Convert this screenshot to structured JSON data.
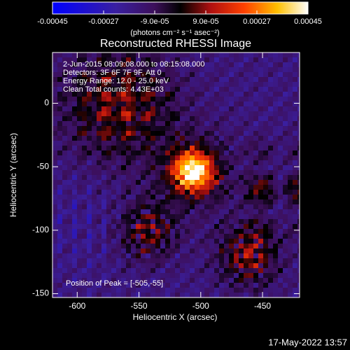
{
  "chart_data": {
    "type": "image",
    "title": "Reconstructed RHESSI Image",
    "x_label": "Heliocentric X (arcsec)",
    "y_label": "Heliocentric Y (arcsec)",
    "xlim": [
      -620,
      -420
    ],
    "xticks": [
      -600,
      -550,
      -500,
      -450
    ],
    "ylim": [
      -153,
      40
    ],
    "yticks": [
      -150,
      -100,
      -50,
      0
    ],
    "colorbar": {
      "lim": [
        -0.00045,
        0.00045
      ],
      "ticks": [
        -0.00045,
        -0.00027,
        {
          "value": -9e-05,
          "label": "-9.0e-05"
        },
        {
          "value": 9e-05,
          "label": "9.0e-05"
        },
        0.00027,
        0.00045
      ],
      "label": "(photons cm⁻² s⁻¹ asec⁻²)"
    },
    "annotations": [
      "2-Jun-2015 08:09:08.000 to 08:15:08.000",
      "Detectors: 3F 6F 7F 9F, Att 0",
      "Energy Range: 12.0 - 25.0 keV",
      "Clean     Total counts: 4.43E+03"
    ],
    "peak_note": "Position of Peak = [-505,-55]",
    "timestamp": "17-May-2022 13:57"
  }
}
